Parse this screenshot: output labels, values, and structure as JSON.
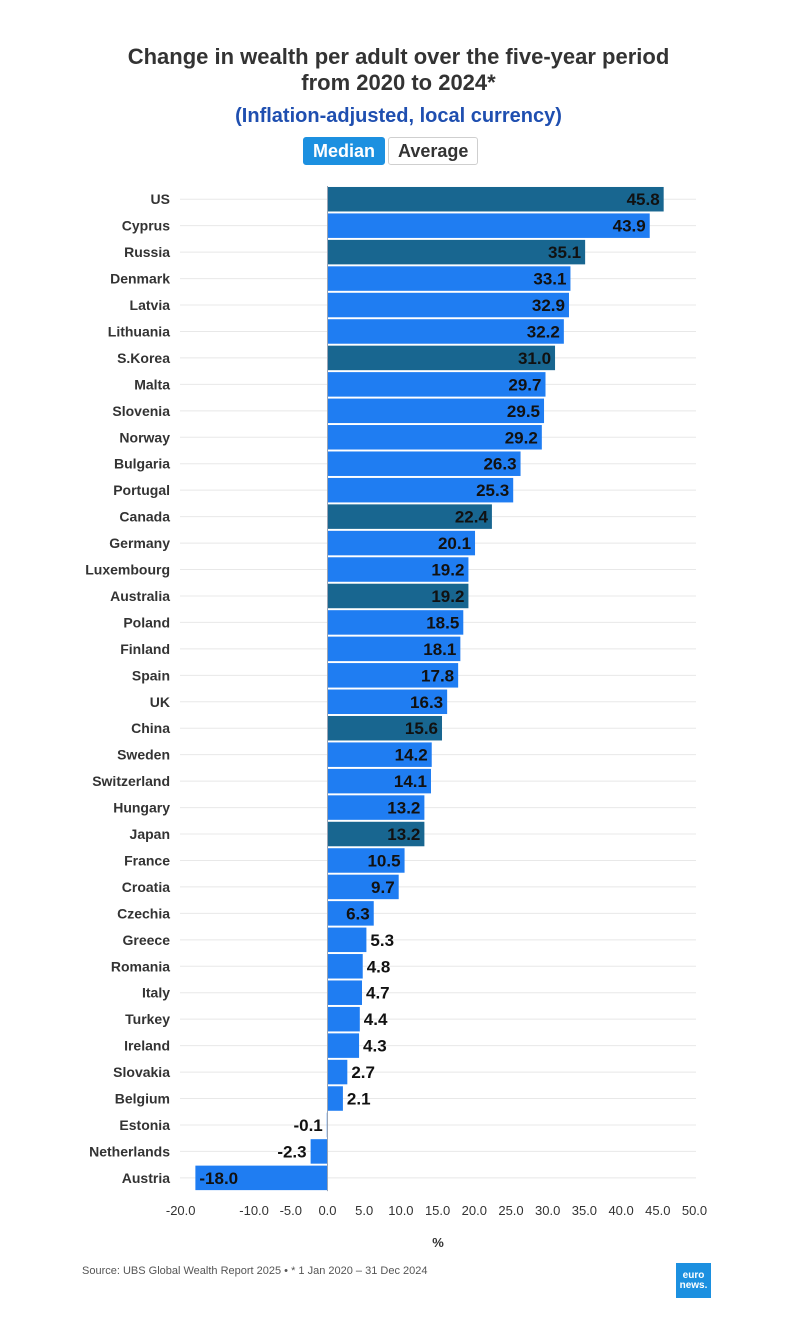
{
  "title_line1": "Change in wealth per adult over the five-year period",
  "title_line2": "from 2020 to 2024*",
  "subtitle": "(Inflation-adjusted, local currency)",
  "toggle": {
    "median_label": "Median",
    "average_label": "Average",
    "selected": "Median"
  },
  "source": "Source: UBS Global Wealth Report 2025 • * 1 Jan 2020 – 31 Dec 2024",
  "logo": {
    "line1": "euro",
    "line2": "news."
  },
  "colors": {
    "highlight": "#186690",
    "default": "#1f7df2",
    "grid": "#e8e8e8",
    "zero_line": "#9aa4b4"
  },
  "chart_data": {
    "type": "bar",
    "orientation": "horizontal",
    "title": "Change in wealth per adult over the five-year period from 2020 to 2024*",
    "xlabel": "%",
    "xlim": [
      -20,
      50
    ],
    "ticks": [
      "-20.0",
      "-10.0",
      "-5.0",
      "0.0",
      "5.0",
      "10.0",
      "15.0",
      "20.0",
      "25.0",
      "30.0",
      "35.0",
      "40.0",
      "45.0",
      "50.0"
    ],
    "tick_values": [
      -20,
      -10,
      -5,
      0,
      5,
      10,
      15,
      20,
      25,
      30,
      35,
      40,
      45,
      50
    ],
    "grid": true,
    "categories": [
      "US",
      "Cyprus",
      "Russia",
      "Denmark",
      "Latvia",
      "Lithuania",
      "S.Korea",
      "Malta",
      "Slovenia",
      "Norway",
      "Bulgaria",
      "Portugal",
      "Canada",
      "Germany",
      "Luxembourg",
      "Australia",
      "Poland",
      "Finland",
      "Spain",
      "UK",
      "China",
      "Sweden",
      "Switzerland",
      "Hungary",
      "Japan",
      "France",
      "Croatia",
      "Czechia",
      "Greece",
      "Romania",
      "Italy",
      "Turkey",
      "Ireland",
      "Slovakia",
      "Belgium",
      "Estonia",
      "Netherlands",
      "Austria"
    ],
    "values": [
      45.8,
      43.9,
      35.1,
      33.1,
      32.9,
      32.2,
      31.0,
      29.7,
      29.5,
      29.2,
      26.3,
      25.3,
      22.4,
      20.1,
      19.2,
      19.2,
      18.5,
      18.1,
      17.8,
      16.3,
      15.6,
      14.2,
      14.1,
      13.2,
      13.2,
      10.5,
      9.7,
      6.3,
      5.3,
      4.8,
      4.7,
      4.4,
      4.3,
      2.7,
      2.1,
      -0.1,
      -2.3,
      -18.0
    ],
    "labels": [
      "45.8",
      "43.9",
      "35.1",
      "33.1",
      "32.9",
      "32.2",
      "31.0",
      "29.7",
      "29.5",
      "29.2",
      "26.3",
      "25.3",
      "22.4",
      "20.1",
      "19.2",
      "19.2",
      "18.5",
      "18.1",
      "17.8",
      "16.3",
      "15.6",
      "14.2",
      "14.1",
      "13.2",
      "13.2",
      "10.5",
      "9.7",
      "6.3",
      "5.3",
      "4.8",
      "4.7",
      "4.4",
      "4.3",
      "2.7",
      "2.1",
      "-0.1",
      "-2.3",
      "-18.0"
    ],
    "highlighted": [
      "US",
      "Russia",
      "S.Korea",
      "Canada",
      "Australia",
      "China",
      "Japan"
    ]
  }
}
